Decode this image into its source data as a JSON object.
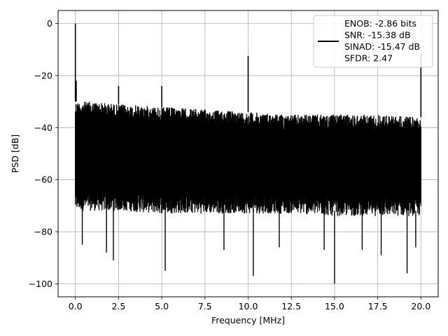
{
  "chart_data": {
    "type": "line",
    "xlabel": "Frequency [MHz]",
    "ylabel": "PSD [dB]",
    "xlim": [
      -1.0,
      21.0
    ],
    "ylim": [
      -105,
      5
    ],
    "x_ticks": [
      0.0,
      2.5,
      5.0,
      7.5,
      10.0,
      12.5,
      15.0,
      17.5,
      20.0
    ],
    "x_tick_labels": [
      "0.0",
      "2.5",
      "5.0",
      "7.5",
      "10.0",
      "12.5",
      "15.0",
      "17.5",
      "20.0"
    ],
    "y_ticks": [
      0,
      -20,
      -40,
      -60,
      -80,
      -100
    ],
    "y_tick_labels": [
      "0",
      "−20",
      "−40",
      "−60",
      "−80",
      "−100"
    ],
    "grid": true,
    "legend_position": "top-right",
    "series_color": "#000000",
    "legend": [
      "ENOB: -2.86 bits",
      "SNR: -15.38 dB",
      "SINAD: -15.47 dB",
      "SFDR: 2.47"
    ],
    "noise_envelope": {
      "x": [
        0.0,
        1.0,
        2.5,
        5.0,
        7.5,
        10.0,
        12.5,
        15.0,
        17.5,
        20.0
      ],
      "upper": [
        -30,
        -30,
        -31,
        -32,
        -33,
        -34,
        -35,
        -35,
        -35,
        -36
      ],
      "lower": [
        -70,
        -70,
        -70,
        -71,
        -71,
        -71,
        -71,
        -72,
        -72,
        -72
      ],
      "floor_deep_dips": [
        [
          0.4,
          -85
        ],
        [
          1.8,
          -88
        ],
        [
          2.2,
          -91
        ],
        [
          5.2,
          -95
        ],
        [
          8.6,
          -87
        ],
        [
          10.3,
          -97
        ],
        [
          11.8,
          -86
        ],
        [
          14.4,
          -87
        ],
        [
          15.0,
          -100
        ],
        [
          16.6,
          -87
        ],
        [
          17.7,
          -89
        ],
        [
          19.2,
          -96
        ],
        [
          19.7,
          -86
        ]
      ]
    },
    "peaks": [
      {
        "x": 0.0,
        "y": 0.0
      },
      {
        "x": 0.05,
        "y": -22.0
      },
      {
        "x": 2.5,
        "y": -24.0
      },
      {
        "x": 5.0,
        "y": -24.0
      },
      {
        "x": 10.0,
        "y": -12.5
      },
      {
        "x": 20.0,
        "y": -11.5
      }
    ]
  }
}
